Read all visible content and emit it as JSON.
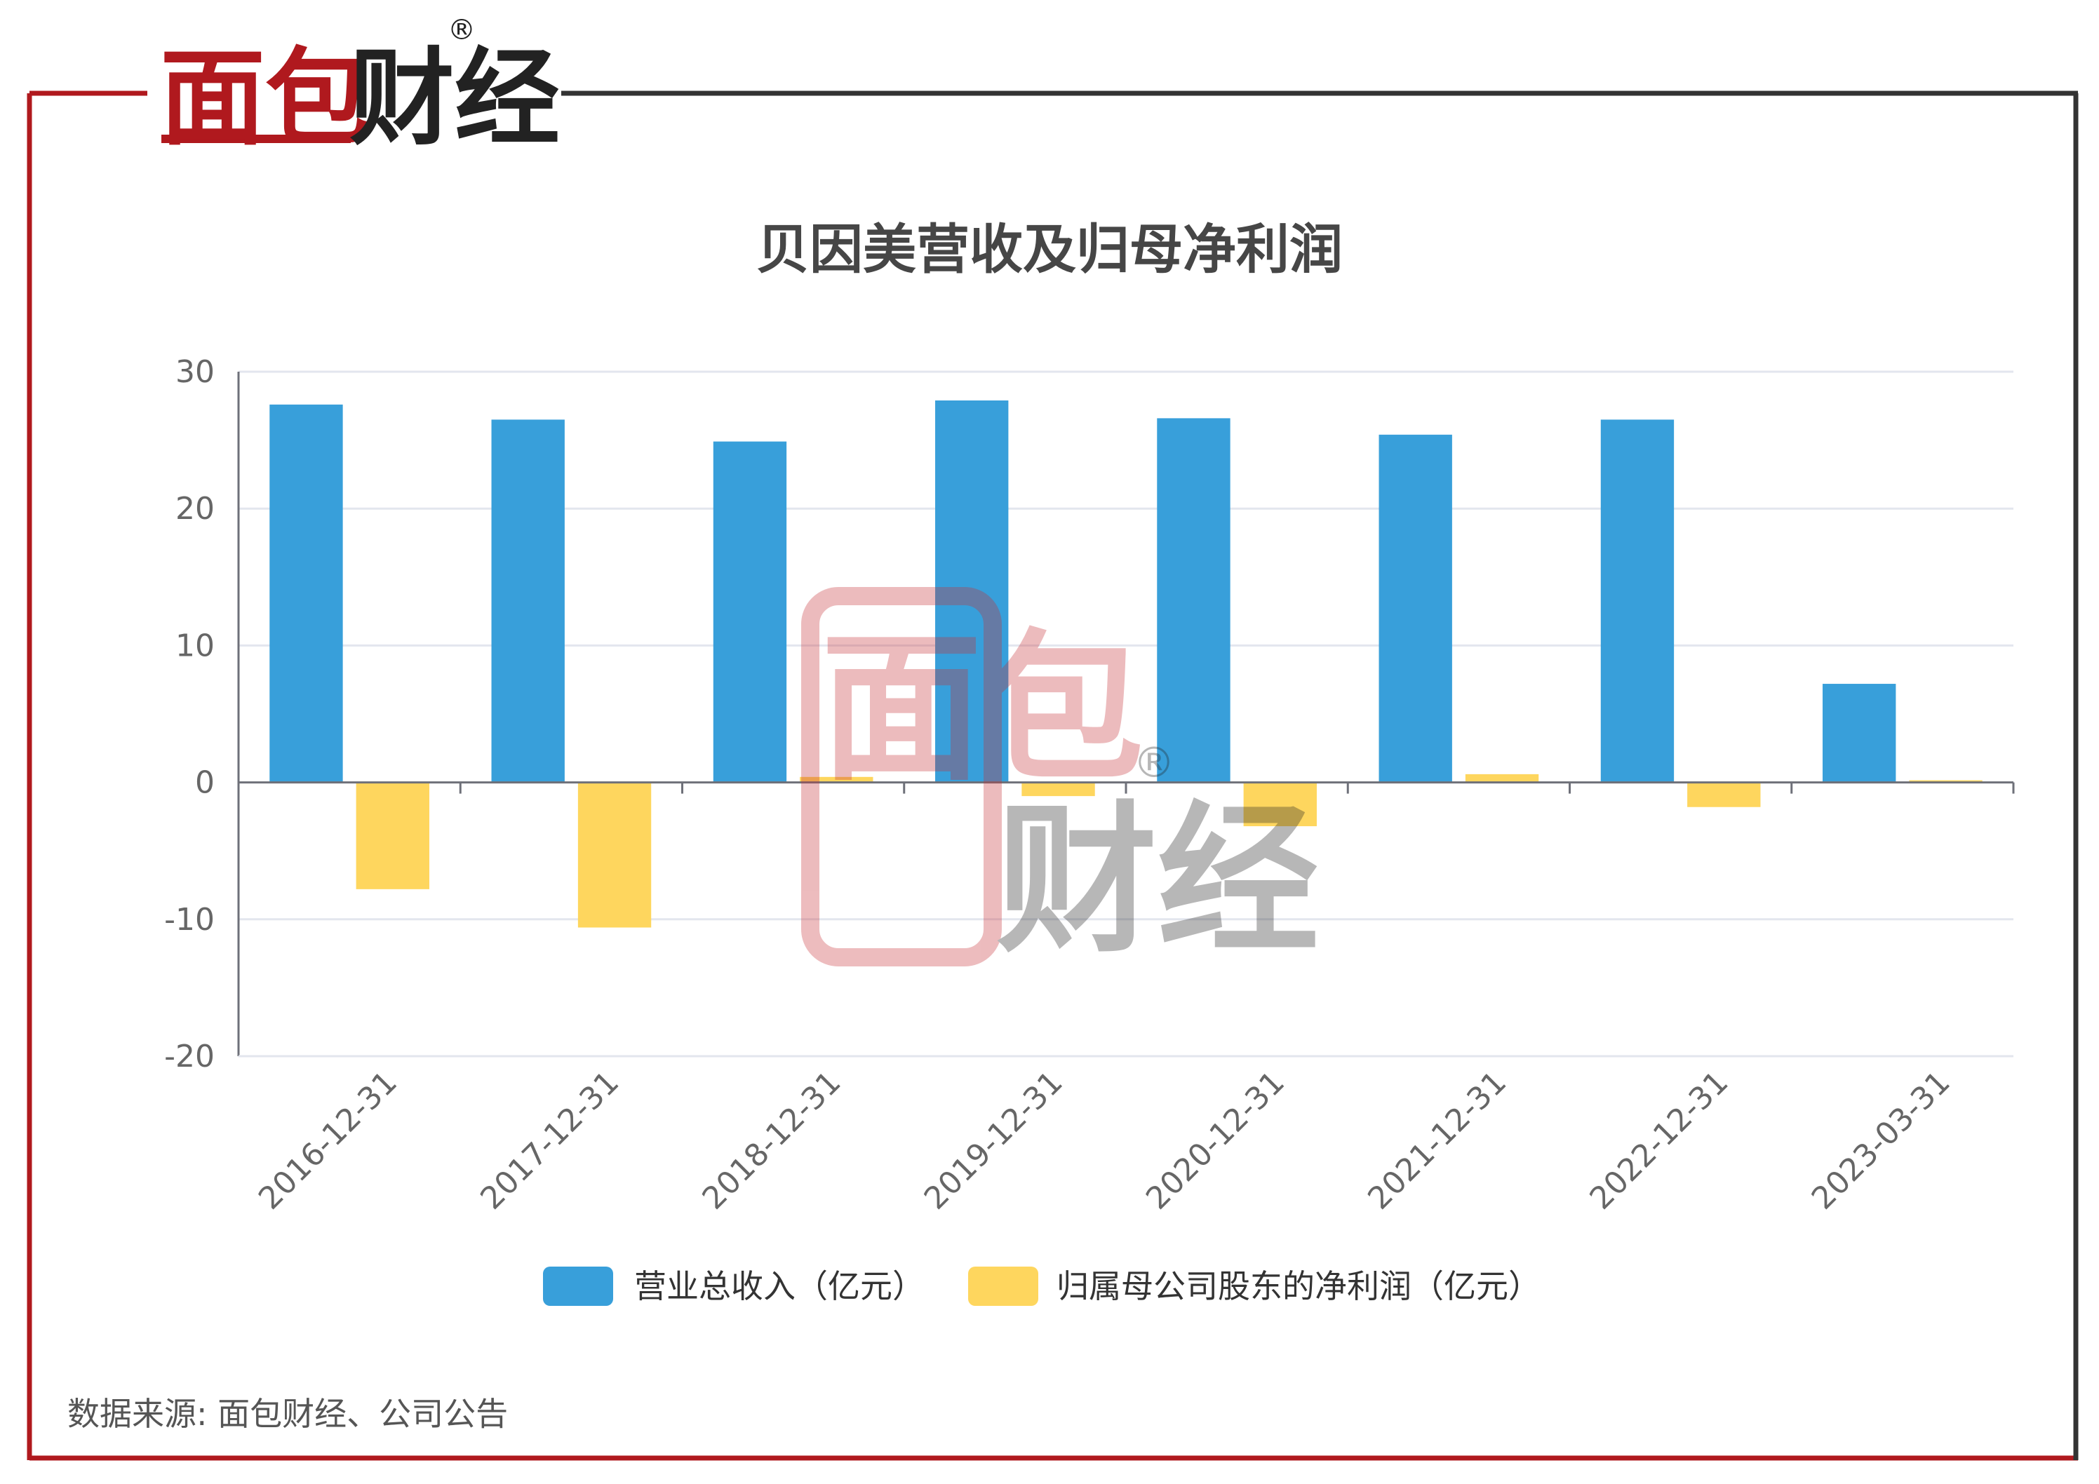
{
  "brand": {
    "logo_red": "面包",
    "logo_black": "财经",
    "registered": "®"
  },
  "colors": {
    "frame_red": "#b0191e",
    "frame_dark": "#333333",
    "revenue": "#389fda",
    "profit": "#fed65e",
    "grid": "#e3e6ee",
    "axis": "#6e7079"
  },
  "chart_data": {
    "type": "bar",
    "title": "贝因美营收及归母净利润",
    "categories": [
      "2016-12-31",
      "2017-12-31",
      "2018-12-31",
      "2019-12-31",
      "2020-12-31",
      "2021-12-31",
      "2022-12-31",
      "2023-03-31"
    ],
    "series": [
      {
        "name": "营业总收入（亿元）",
        "values": [
          27.6,
          26.5,
          24.9,
          27.9,
          26.6,
          25.4,
          26.5,
          7.2
        ]
      },
      {
        "name": "归属母公司股东的净利润（亿元）",
        "values": [
          -7.8,
          -10.6,
          0.4,
          -1.0,
          -3.2,
          0.6,
          -1.8,
          0.05
        ]
      }
    ],
    "ylim": [
      -20,
      30
    ],
    "yticks": [
      30,
      20,
      10,
      0,
      -10,
      -20
    ],
    "grid": true,
    "legend_position": "bottom-center"
  },
  "source_text": "数据来源: 面包财经、公司公告"
}
